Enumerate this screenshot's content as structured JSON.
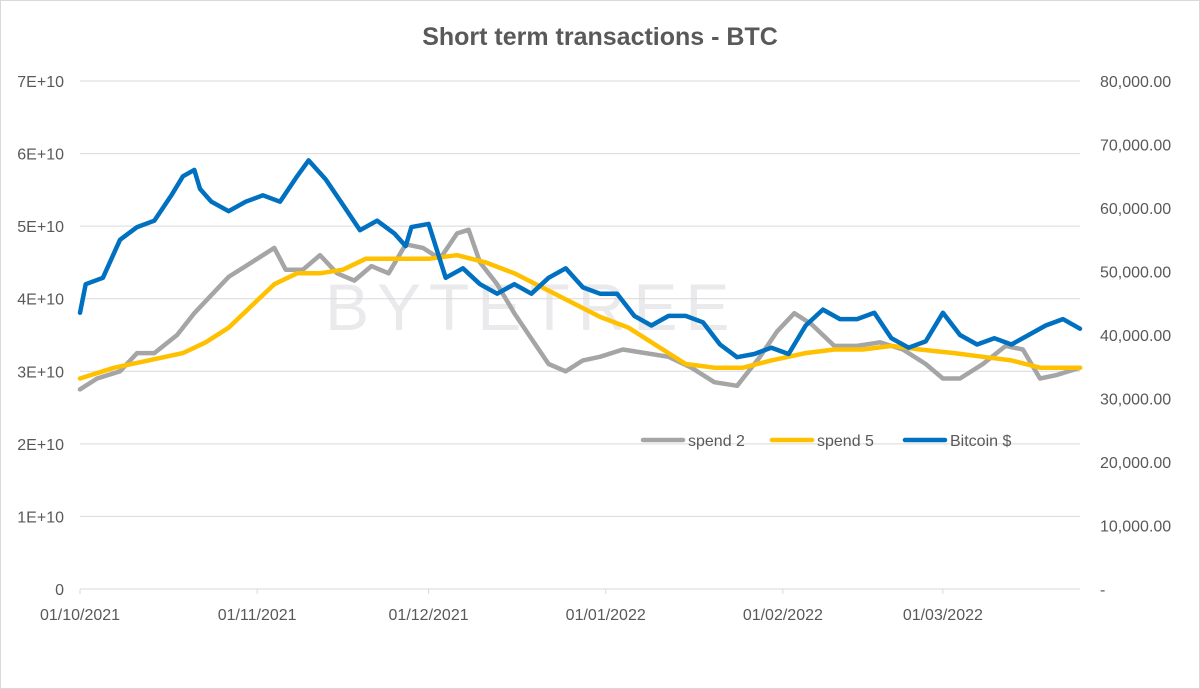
{
  "chart_data": {
    "type": "line",
    "title": "Short term transactions - BTC",
    "watermark": "BYTETREE",
    "x_range": [
      "2021-10-01",
      "2022-03-25"
    ],
    "x_ticks": [
      "01/10/2021",
      "01/11/2021",
      "01/12/2021",
      "01/01/2022",
      "01/02/2022",
      "01/03/2022"
    ],
    "y_left": {
      "range": [
        0,
        70000000000
      ],
      "ticks": [
        "0",
        "1E+10",
        "2E+10",
        "3E+10",
        "4E+10",
        "5E+10",
        "6E+10",
        "7E+10"
      ]
    },
    "y_right": {
      "range": [
        0,
        80000
      ],
      "ticks": [
        "-",
        "10,000.00",
        "20,000.00",
        "30,000.00",
        "40,000.00",
        "50,000.00",
        "60,000.00",
        "70,000.00",
        "80,000.00"
      ]
    },
    "grid": "horizontal",
    "legend_position": "inside-bottom-right",
    "series": [
      {
        "name": "spend 2",
        "axis": "left",
        "color": "#a5a5a5",
        "points": [
          [
            "2021-10-01",
            27500000000.0
          ],
          [
            "2021-10-04",
            29000000000.0
          ],
          [
            "2021-10-08",
            30000000000.0
          ],
          [
            "2021-10-11",
            32500000000.0
          ],
          [
            "2021-10-14",
            32500000000.0
          ],
          [
            "2021-10-18",
            35000000000.0
          ],
          [
            "2021-10-21",
            38000000000.0
          ],
          [
            "2021-10-24",
            40500000000.0
          ],
          [
            "2021-10-27",
            43000000000.0
          ],
          [
            "2021-10-30",
            44500000000.0
          ],
          [
            "2021-11-02",
            46000000000.0
          ],
          [
            "2021-11-04",
            47000000000.0
          ],
          [
            "2021-11-06",
            44000000000.0
          ],
          [
            "2021-11-09",
            44000000000.0
          ],
          [
            "2021-11-12",
            46000000000.0
          ],
          [
            "2021-11-15",
            43500000000.0
          ],
          [
            "2021-11-18",
            42500000000.0
          ],
          [
            "2021-11-21",
            44500000000.0
          ],
          [
            "2021-11-24",
            43500000000.0
          ],
          [
            "2021-11-27",
            47500000000.0
          ],
          [
            "2021-11-30",
            47000000000.0
          ],
          [
            "2021-12-03",
            45500000000.0
          ],
          [
            "2021-12-06",
            49000000000.0
          ],
          [
            "2021-12-08",
            49500000000.0
          ],
          [
            "2021-12-10",
            45000000000.0
          ],
          [
            "2021-12-13",
            42000000000.0
          ],
          [
            "2021-12-16",
            38000000000.0
          ],
          [
            "2021-12-19",
            34500000000.0
          ],
          [
            "2021-12-22",
            31000000000.0
          ],
          [
            "2021-12-25",
            30000000000.0
          ],
          [
            "2021-12-28",
            31500000000.0
          ],
          [
            "2021-12-31",
            32000000000.0
          ],
          [
            "2022-01-04",
            33000000000.0
          ],
          [
            "2022-01-08",
            32500000000.0
          ],
          [
            "2022-01-12",
            32000000000.0
          ],
          [
            "2022-01-16",
            30500000000.0
          ],
          [
            "2022-01-20",
            28500000000.0
          ],
          [
            "2022-01-24",
            28000000000.0
          ],
          [
            "2022-01-28",
            32000000000.0
          ],
          [
            "2022-01-31",
            35500000000.0
          ],
          [
            "2022-02-03",
            38000000000.0
          ],
          [
            "2022-02-06",
            36500000000.0
          ],
          [
            "2022-02-10",
            33500000000.0
          ],
          [
            "2022-02-14",
            33500000000.0
          ],
          [
            "2022-02-18",
            34000000000.0
          ],
          [
            "2022-02-22",
            33000000000.0
          ],
          [
            "2022-02-26",
            31000000000.0
          ],
          [
            "2022-03-01",
            29000000000.0
          ],
          [
            "2022-03-04",
            29000000000.0
          ],
          [
            "2022-03-08",
            31000000000.0
          ],
          [
            "2022-03-12",
            33500000000.0
          ],
          [
            "2022-03-15",
            33000000000.0
          ],
          [
            "2022-03-18",
            29000000000.0
          ],
          [
            "2022-03-21",
            29500000000.0
          ],
          [
            "2022-03-25",
            30500000000.0
          ]
        ]
      },
      {
        "name": "spend 5",
        "axis": "left",
        "color": "#ffc000",
        "points": [
          [
            "2021-10-01",
            29000000000.0
          ],
          [
            "2021-10-07",
            30500000000.0
          ],
          [
            "2021-10-13",
            31500000000.0
          ],
          [
            "2021-10-19",
            32500000000.0
          ],
          [
            "2021-10-23",
            34000000000.0
          ],
          [
            "2021-10-27",
            36000000000.0
          ],
          [
            "2021-10-31",
            39000000000.0
          ],
          [
            "2021-11-04",
            42000000000.0
          ],
          [
            "2021-11-08",
            43500000000.0
          ],
          [
            "2021-11-12",
            43500000000.0
          ],
          [
            "2021-11-16",
            44000000000.0
          ],
          [
            "2021-11-20",
            45500000000.0
          ],
          [
            "2021-11-26",
            45500000000.0
          ],
          [
            "2021-12-01",
            45500000000.0
          ],
          [
            "2021-12-06",
            46000000000.0
          ],
          [
            "2021-12-11",
            45000000000.0
          ],
          [
            "2021-12-16",
            43500000000.0
          ],
          [
            "2021-12-21",
            41500000000.0
          ],
          [
            "2021-12-26",
            39500000000.0
          ],
          [
            "2021-12-31",
            37500000000.0
          ],
          [
            "2022-01-05",
            36000000000.0
          ],
          [
            "2022-01-10",
            33500000000.0
          ],
          [
            "2022-01-15",
            31000000000.0
          ],
          [
            "2022-01-20",
            30500000000.0
          ],
          [
            "2022-01-25",
            30500000000.0
          ],
          [
            "2022-01-30",
            31500000000.0
          ],
          [
            "2022-02-05",
            32500000000.0
          ],
          [
            "2022-02-10",
            33000000000.0
          ],
          [
            "2022-02-15",
            33000000000.0
          ],
          [
            "2022-02-20",
            33500000000.0
          ],
          [
            "2022-02-25",
            33000000000.0
          ],
          [
            "2022-03-03",
            32500000000.0
          ],
          [
            "2022-03-08",
            32000000000.0
          ],
          [
            "2022-03-13",
            31500000000.0
          ],
          [
            "2022-03-18",
            30500000000.0
          ],
          [
            "2022-03-25",
            30500000000.0
          ]
        ]
      },
      {
        "name": "Bitcoin $",
        "axis": "right",
        "color": "#0070c0",
        "points": [
          [
            "2021-10-01",
            43500
          ],
          [
            "2021-10-02",
            48000
          ],
          [
            "2021-10-05",
            49000
          ],
          [
            "2021-10-08",
            55000
          ],
          [
            "2021-10-11",
            57000
          ],
          [
            "2021-10-14",
            58000
          ],
          [
            "2021-10-17",
            62000
          ],
          [
            "2021-10-19",
            65000
          ],
          [
            "2021-10-21",
            66000
          ],
          [
            "2021-10-22",
            63000
          ],
          [
            "2021-10-24",
            61000
          ],
          [
            "2021-10-27",
            59500
          ],
          [
            "2021-10-30",
            61000
          ],
          [
            "2021-11-02",
            62000
          ],
          [
            "2021-11-05",
            61000
          ],
          [
            "2021-11-08",
            65000
          ],
          [
            "2021-11-10",
            67500
          ],
          [
            "2021-11-13",
            64500
          ],
          [
            "2021-11-16",
            60500
          ],
          [
            "2021-11-19",
            56500
          ],
          [
            "2021-11-22",
            58000
          ],
          [
            "2021-11-25",
            56000
          ],
          [
            "2021-11-27",
            54000
          ],
          [
            "2021-11-28",
            57000
          ],
          [
            "2021-12-01",
            57500
          ],
          [
            "2021-12-04",
            49000
          ],
          [
            "2021-12-07",
            50500
          ],
          [
            "2021-12-10",
            48000
          ],
          [
            "2021-12-13",
            46500
          ],
          [
            "2021-12-16",
            48000
          ],
          [
            "2021-12-19",
            46500
          ],
          [
            "2021-12-22",
            49000
          ],
          [
            "2021-12-25",
            50500
          ],
          [
            "2021-12-28",
            47500
          ],
          [
            "2021-12-31",
            46500
          ],
          [
            "2022-01-03",
            46500
          ],
          [
            "2022-01-06",
            43000
          ],
          [
            "2022-01-09",
            41500
          ],
          [
            "2022-01-12",
            43000
          ],
          [
            "2022-01-15",
            43000
          ],
          [
            "2022-01-18",
            42000
          ],
          [
            "2022-01-21",
            38500
          ],
          [
            "2022-01-24",
            36500
          ],
          [
            "2022-01-27",
            37000
          ],
          [
            "2022-01-30",
            38000
          ],
          [
            "2022-02-02",
            37000
          ],
          [
            "2022-02-05",
            41500
          ],
          [
            "2022-02-08",
            44000
          ],
          [
            "2022-02-11",
            42500
          ],
          [
            "2022-02-14",
            42500
          ],
          [
            "2022-02-17",
            43500
          ],
          [
            "2022-02-20",
            39500
          ],
          [
            "2022-02-23",
            38000
          ],
          [
            "2022-02-26",
            39000
          ],
          [
            "2022-03-01",
            43500
          ],
          [
            "2022-03-04",
            40000
          ],
          [
            "2022-03-07",
            38500
          ],
          [
            "2022-03-10",
            39500
          ],
          [
            "2022-03-13",
            38500
          ],
          [
            "2022-03-16",
            40000
          ],
          [
            "2022-03-19",
            41500
          ],
          [
            "2022-03-22",
            42500
          ],
          [
            "2022-03-25",
            41000
          ]
        ]
      }
    ]
  }
}
